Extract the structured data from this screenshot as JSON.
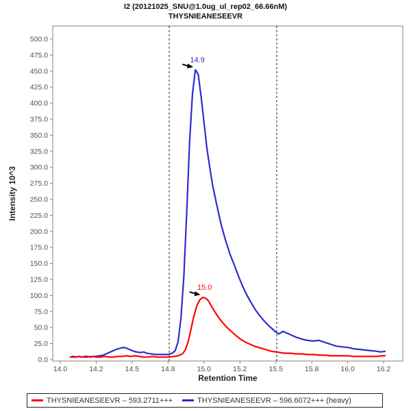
{
  "title": {
    "line1": "I2 (20121025_SNU@1.0ug_ul_rep02_66.66nM)",
    "line2": "THYSNIEANESEEVR"
  },
  "axes": {
    "xlabel": "Retention Time",
    "ylabel": "Intensity 10^3"
  },
  "colors": {
    "light_series": "#ff0000",
    "heavy_series": "#2b2bd0",
    "frame": "#808080",
    "tick_text": "#4d4d4d",
    "boundary_line": "#1a1a1a"
  },
  "legend": {
    "items": [
      {
        "label": "THYSNIEANESEEVR – 593.2711+++",
        "color": "#ff0000"
      },
      {
        "label": "THYSNIEANESEEVR – 596.6072+++ (heavy)",
        "color": "#2b2bd0"
      }
    ]
  },
  "chart_data": {
    "type": "line",
    "title": "I2 (20121025_SNU@1.0ug_ul_rep02_66.66nM) / THYSNIEANESEEVR",
    "xlabel": "Retention Time",
    "ylabel": "Intensity 10^3",
    "xlim": [
      13.95,
      16.38
    ],
    "ylim": [
      0,
      520
    ],
    "grid": false,
    "legend_position": "bottom",
    "x_ticks": [
      [
        14.0,
        "14.0"
      ],
      [
        14.25,
        "14.2"
      ],
      [
        14.5,
        "14.5"
      ],
      [
        14.75,
        "14.8"
      ],
      [
        15.0,
        "15.0"
      ],
      [
        15.25,
        "15.2"
      ],
      [
        15.5,
        "15.5"
      ],
      [
        15.75,
        "15.8"
      ],
      [
        16.0,
        "16.0"
      ],
      [
        16.25,
        "16.2"
      ]
    ],
    "y_ticks": [
      [
        0,
        "0.0"
      ],
      [
        25,
        "25.0"
      ],
      [
        50,
        "50.0"
      ],
      [
        75,
        "75.0"
      ],
      [
        100,
        "100.0"
      ],
      [
        125,
        "125.0"
      ],
      [
        150,
        "150.0"
      ],
      [
        175,
        "175.0"
      ],
      [
        200,
        "200.0"
      ],
      [
        225,
        "225.0"
      ],
      [
        250,
        "250.0"
      ],
      [
        275,
        "275.0"
      ],
      [
        300,
        "300.0"
      ],
      [
        325,
        "325.0"
      ],
      [
        350,
        "350.0"
      ],
      [
        375,
        "375.0"
      ],
      [
        400,
        "400.0"
      ],
      [
        425,
        "425.0"
      ],
      [
        450,
        "450.0"
      ],
      [
        475,
        "475.0"
      ],
      [
        500,
        "500.0"
      ]
    ],
    "boundary_lines_x": [
      14.758,
      15.506
    ],
    "series": [
      {
        "name": "THYSNIEANESEEVR – 596.6072+++ (heavy)",
        "color": "#2b2bd0",
        "peak_label": "14.9",
        "peak_at": [
          14.94,
          452
        ],
        "points": [
          [
            14.07,
            4
          ],
          [
            14.09,
            5
          ],
          [
            14.11,
            4
          ],
          [
            14.13,
            5
          ],
          [
            14.15,
            4
          ],
          [
            14.17,
            5
          ],
          [
            14.19,
            5
          ],
          [
            14.21,
            4
          ],
          [
            14.23,
            5
          ],
          [
            14.25,
            5
          ],
          [
            14.27,
            6
          ],
          [
            14.3,
            7
          ],
          [
            14.33,
            10
          ],
          [
            14.36,
            13
          ],
          [
            14.39,
            16
          ],
          [
            14.42,
            18
          ],
          [
            14.44,
            19
          ],
          [
            14.46,
            18
          ],
          [
            14.48,
            16
          ],
          [
            14.5,
            14
          ],
          [
            14.53,
            12
          ],
          [
            14.56,
            11
          ],
          [
            14.58,
            12
          ],
          [
            14.6,
            10
          ],
          [
            14.63,
            9
          ],
          [
            14.66,
            8
          ],
          [
            14.69,
            8
          ],
          [
            14.72,
            8
          ],
          [
            14.75,
            8
          ],
          [
            14.78,
            10
          ],
          [
            14.8,
            14
          ],
          [
            14.82,
            28
          ],
          [
            14.84,
            65
          ],
          [
            14.86,
            130
          ],
          [
            14.88,
            230
          ],
          [
            14.9,
            340
          ],
          [
            14.92,
            415
          ],
          [
            14.94,
            452
          ],
          [
            14.96,
            445
          ],
          [
            14.98,
            410
          ],
          [
            15.0,
            370
          ],
          [
            15.02,
            330
          ],
          [
            15.04,
            300
          ],
          [
            15.06,
            272
          ],
          [
            15.09,
            240
          ],
          [
            15.12,
            210
          ],
          [
            15.15,
            186
          ],
          [
            15.18,
            165
          ],
          [
            15.21,
            148
          ],
          [
            15.24,
            130
          ],
          [
            15.27,
            114
          ],
          [
            15.3,
            100
          ],
          [
            15.33,
            88
          ],
          [
            15.36,
            77
          ],
          [
            15.39,
            68
          ],
          [
            15.42,
            60
          ],
          [
            15.45,
            53
          ],
          [
            15.48,
            47
          ],
          [
            15.5,
            43
          ],
          [
            15.52,
            40
          ],
          [
            15.55,
            44
          ],
          [
            15.58,
            41
          ],
          [
            15.61,
            38
          ],
          [
            15.64,
            35
          ],
          [
            15.68,
            32
          ],
          [
            15.72,
            30
          ],
          [
            15.76,
            29
          ],
          [
            15.8,
            30
          ],
          [
            15.84,
            27
          ],
          [
            15.88,
            24
          ],
          [
            15.92,
            21
          ],
          [
            15.96,
            20
          ],
          [
            16.0,
            19
          ],
          [
            16.04,
            17
          ],
          [
            16.08,
            16
          ],
          [
            16.12,
            15
          ],
          [
            16.16,
            14
          ],
          [
            16.2,
            13
          ],
          [
            16.23,
            12
          ],
          [
            16.26,
            13
          ]
        ]
      },
      {
        "name": "THYSNIEANESEEVR – 593.2711+++",
        "color": "#ff0000",
        "peak_label": "15.0",
        "peak_at": [
          14.99,
          97
        ],
        "points": [
          [
            14.07,
            4
          ],
          [
            14.1,
            4
          ],
          [
            14.13,
            5
          ],
          [
            14.16,
            4
          ],
          [
            14.19,
            4
          ],
          [
            14.22,
            5
          ],
          [
            14.25,
            4
          ],
          [
            14.28,
            4
          ],
          [
            14.31,
            5
          ],
          [
            14.34,
            4
          ],
          [
            14.37,
            4
          ],
          [
            14.4,
            5
          ],
          [
            14.43,
            5
          ],
          [
            14.46,
            6
          ],
          [
            14.49,
            5
          ],
          [
            14.52,
            6
          ],
          [
            14.55,
            5
          ],
          [
            14.58,
            4
          ],
          [
            14.61,
            4
          ],
          [
            14.64,
            5
          ],
          [
            14.67,
            4
          ],
          [
            14.7,
            4
          ],
          [
            14.73,
            4
          ],
          [
            14.76,
            4
          ],
          [
            14.79,
            5
          ],
          [
            14.82,
            6
          ],
          [
            14.85,
            9
          ],
          [
            14.87,
            15
          ],
          [
            14.89,
            28
          ],
          [
            14.91,
            48
          ],
          [
            14.93,
            68
          ],
          [
            14.95,
            84
          ],
          [
            14.97,
            93
          ],
          [
            14.99,
            97
          ],
          [
            15.01,
            96
          ],
          [
            15.03,
            92
          ],
          [
            15.05,
            84
          ],
          [
            15.08,
            73
          ],
          [
            15.11,
            63
          ],
          [
            15.14,
            55
          ],
          [
            15.17,
            48
          ],
          [
            15.2,
            42
          ],
          [
            15.23,
            36
          ],
          [
            15.26,
            31
          ],
          [
            15.29,
            27
          ],
          [
            15.32,
            24
          ],
          [
            15.35,
            21
          ],
          [
            15.38,
            19
          ],
          [
            15.41,
            17
          ],
          [
            15.44,
            15
          ],
          [
            15.47,
            13
          ],
          [
            15.5,
            12
          ],
          [
            15.53,
            11
          ],
          [
            15.56,
            10
          ],
          [
            15.6,
            10
          ],
          [
            15.64,
            9
          ],
          [
            15.68,
            9
          ],
          [
            15.72,
            8
          ],
          [
            15.76,
            8
          ],
          [
            15.8,
            7
          ],
          [
            15.84,
            7
          ],
          [
            15.88,
            6
          ],
          [
            15.92,
            6
          ],
          [
            15.96,
            6
          ],
          [
            16.0,
            6
          ],
          [
            16.04,
            5
          ],
          [
            16.08,
            5
          ],
          [
            16.12,
            5
          ],
          [
            16.16,
            5
          ],
          [
            16.2,
            5
          ],
          [
            16.24,
            6
          ],
          [
            16.26,
            6
          ]
        ]
      }
    ]
  }
}
